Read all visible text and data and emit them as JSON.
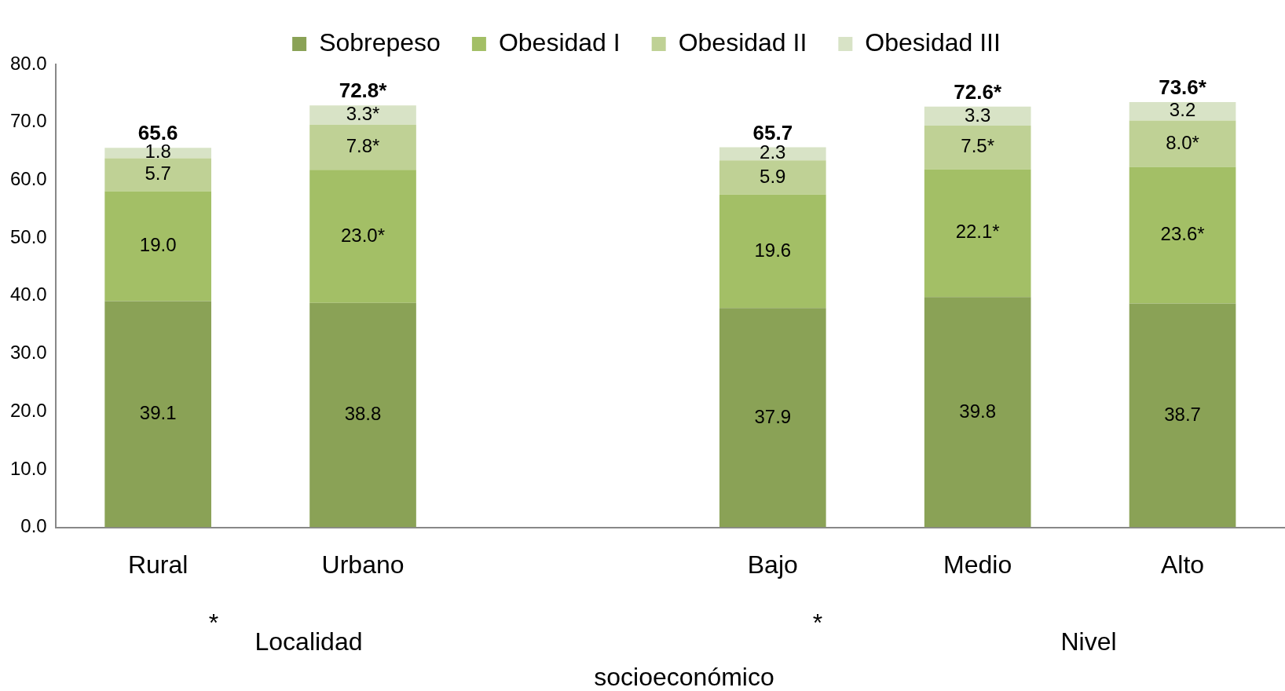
{
  "chart_data": {
    "type": "bar",
    "stacked": true,
    "categories": [
      "Rural",
      "Urbano",
      null,
      "Bajo",
      "Medio",
      "Alto"
    ],
    "series": [
      {
        "name": "Sobrepeso",
        "color": "#8aa256",
        "values": [
          39.1,
          38.8,
          null,
          37.9,
          39.8,
          38.7
        ],
        "value_labels": [
          "39.1",
          "38.8",
          null,
          "37.9",
          "39.8",
          "38.7"
        ]
      },
      {
        "name": "Obesidad I",
        "color": "#a3bf66",
        "values": [
          19.0,
          23.0,
          null,
          19.6,
          22.1,
          23.6
        ],
        "value_labels": [
          "19.0",
          "23.0*",
          null,
          "19.6",
          "22.1*",
          "23.6*"
        ]
      },
      {
        "name": "Obesidad II",
        "color": "#bfd195",
        "values": [
          5.7,
          7.8,
          null,
          5.9,
          7.5,
          8.0
        ],
        "value_labels": [
          "5.7",
          "7.8*",
          null,
          "5.9",
          "7.5*",
          "8.0*"
        ]
      },
      {
        "name": "Obesidad III",
        "color": "#d8e3c6",
        "values": [
          1.8,
          3.3,
          null,
          2.3,
          3.3,
          3.2
        ],
        "value_labels": [
          "1.8",
          "3.3*",
          null,
          "2.3",
          "3.3",
          "3.2"
        ]
      }
    ],
    "totals": [
      "65.6",
      "72.8*",
      null,
      "65.7",
      "72.6*",
      "73.6*"
    ],
    "ylim": [
      0,
      80
    ],
    "yticks": [
      {
        "value": 0,
        "label": "0.0"
      },
      {
        "value": 10,
        "label": "10.0"
      },
      {
        "value": 20,
        "label": "20.0"
      },
      {
        "value": 30,
        "label": "30.0"
      },
      {
        "value": 40,
        "label": "40.0"
      },
      {
        "value": 50,
        "label": "50.0"
      },
      {
        "value": 60,
        "label": "60.0"
      },
      {
        "value": 70,
        "label": "70.0"
      },
      {
        "value": 80,
        "label": "80.0"
      }
    ],
    "grid": false,
    "legend": "top",
    "annotations": [
      "*",
      "Localidad",
      "*",
      "Nivel",
      "socioeconómico"
    ]
  }
}
